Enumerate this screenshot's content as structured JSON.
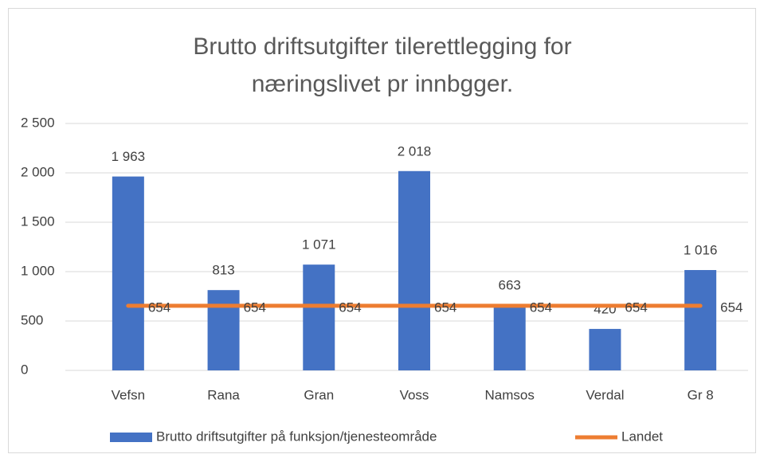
{
  "chart_data": {
    "type": "bar",
    "title": [
      "Brutto driftsutgifter tilerettlegging for",
      "næringslivet pr innbgger."
    ],
    "categories": [
      "Vefsn",
      "Rana",
      "Gran",
      "Voss",
      "Namsos",
      "Verdal",
      "Gr 8"
    ],
    "series": [
      {
        "name": "Brutto driftsutgifter på funksjon/tjenesteområde",
        "type": "bar",
        "color": "#4472c4",
        "values": [
          1963,
          813,
          1071,
          2018,
          663,
          420,
          1016
        ],
        "value_labels": [
          "1 963",
          "813",
          "1 071",
          "2 018",
          "663",
          "420",
          "1 016"
        ]
      },
      {
        "name": "Landet",
        "type": "line",
        "color": "#ed7d31",
        "values": [
          654,
          654,
          654,
          654,
          654,
          654,
          654
        ]
      }
    ],
    "ylim": [
      0,
      2500
    ],
    "yticks": [
      0,
      500,
      {
        "value": 1000,
        "label": "1 000"
      },
      {
        "value": 1500,
        "label": "1 500"
      },
      {
        "value": 2000,
        "label": "2 000"
      },
      {
        "value": 2500,
        "label": "2 500"
      }
    ],
    "grid": true,
    "legend": "bottom"
  }
}
